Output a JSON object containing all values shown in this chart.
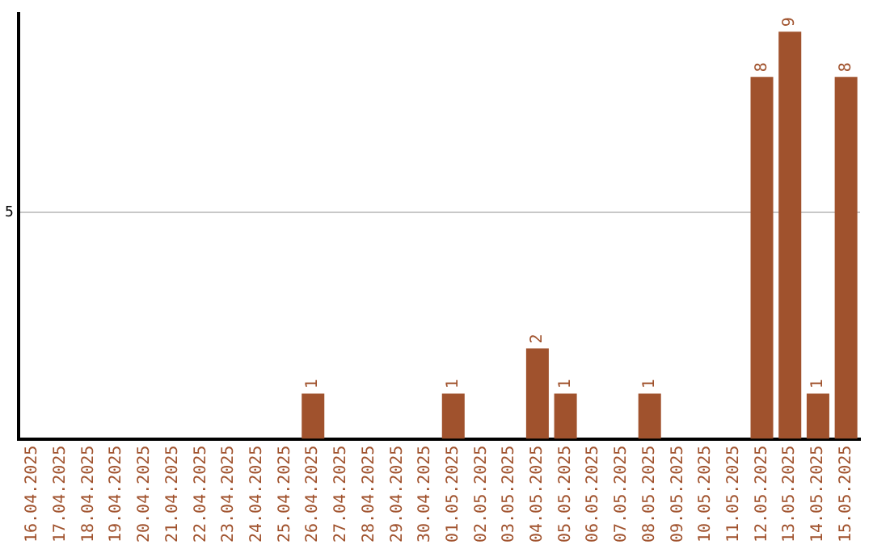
{
  "chart_data": {
    "type": "bar",
    "categories": [
      "16.04.2025",
      "17.04.2025",
      "18.04.2025",
      "19.04.2025",
      "20.04.2025",
      "21.04.2025",
      "22.04.2025",
      "23.04.2025",
      "24.04.2025",
      "25.04.2025",
      "26.04.2025",
      "27.04.2025",
      "28.04.2025",
      "29.04.2025",
      "30.04.2025",
      "01.05.2025",
      "02.05.2025",
      "03.05.2025",
      "04.05.2025",
      "05.05.2025",
      "06.05.2025",
      "07.05.2025",
      "08.05.2025",
      "09.05.2025",
      "10.05.2025",
      "11.05.2025",
      "12.05.2025",
      "13.05.2025",
      "14.05.2025",
      "15.05.2025"
    ],
    "values": [
      0,
      0,
      0,
      0,
      0,
      0,
      0,
      0,
      0,
      0,
      1,
      0,
      0,
      0,
      0,
      1,
      0,
      0,
      2,
      1,
      0,
      0,
      1,
      0,
      0,
      0,
      8,
      9,
      1,
      8
    ],
    "value_labels": [
      null,
      null,
      null,
      null,
      null,
      null,
      null,
      null,
      null,
      null,
      "1",
      null,
      null,
      null,
      null,
      "1",
      null,
      null,
      "2",
      "1",
      null,
      null,
      "1",
      null,
      null,
      null,
      "8",
      "9",
      "1",
      "8"
    ],
    "color": "#a0522d",
    "ylim": [
      0,
      9.4
    ],
    "yticks": [
      5
    ],
    "grid": "y",
    "legend": false
  }
}
